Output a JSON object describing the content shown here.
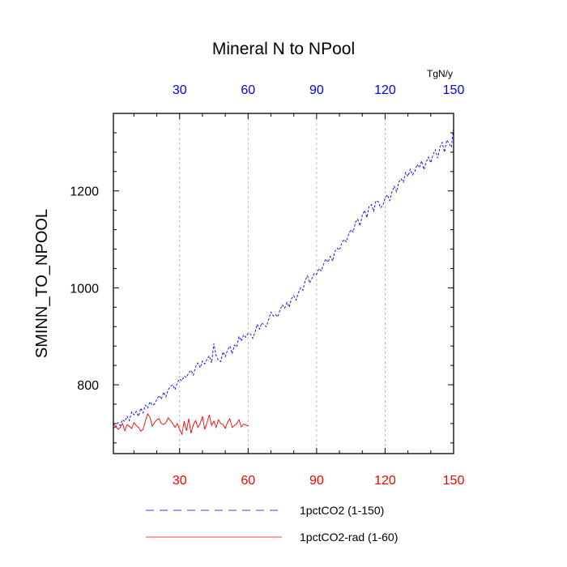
{
  "colors": {
    "series_blue": "#0000ff",
    "series_red": "#ff0000",
    "grid": "#aaaaaa",
    "frame": "#000000"
  },
  "chart_data": {
    "type": "line",
    "title": "Mineral N to NPool",
    "ylabel": "SMINN_TO_NPOOL",
    "units_label": "TgN/y",
    "xlim": [
      1,
      150
    ],
    "ylim": [
      658,
      1360
    ],
    "x_ticks": [
      30,
      60,
      90,
      120,
      150
    ],
    "x_tick_labels": [
      "30",
      "60",
      "90",
      "120",
      "150"
    ],
    "y_ticks": [
      800,
      1000,
      1200
    ],
    "y_tick_labels": [
      "800",
      "1000",
      "1200"
    ],
    "grid": "vertical dashed",
    "legend_placement": "bottom",
    "series": [
      {
        "name": "1pctCO2 (1-150)",
        "color": "#0000ff",
        "dash": "dashed",
        "x_start": 1,
        "values": [
          720,
          712,
          722,
          716,
          728,
          724,
          735,
          726,
          744,
          738,
          745,
          735,
          752,
          742,
          758,
          752,
          765,
          758,
          760,
          770,
          778,
          770,
          785,
          775,
          790,
          797,
          800,
          790,
          805,
          812,
          808,
          818,
          815,
          825,
          830,
          820,
          837,
          845,
          835,
          849,
          843,
          853,
          860,
          845,
          885,
          860,
          850,
          848,
          868,
          858,
          872,
          880,
          864,
          882,
          878,
          900,
          890,
          903,
          898,
          906,
          905,
          896,
          908,
          925,
          915,
          928,
          923,
          920,
          935,
          950,
          942,
          945,
          940,
          955,
          965,
          958,
          970,
          960,
          978,
          984,
          975,
          990,
          1000,
          995,
          1015,
          1025,
          1010,
          1020,
          1030,
          1028,
          1040,
          1035,
          1048,
          1060,
          1053,
          1065,
          1055,
          1075,
          1082,
          1078,
          1092,
          1100,
          1095,
          1110,
          1120,
          1115,
          1135,
          1142,
          1128,
          1150,
          1160,
          1145,
          1168,
          1172,
          1158,
          1180,
          1178,
          1165,
          1170,
          1185,
          1192,
          1180,
          1198,
          1210,
          1198,
          1218,
          1225,
          1218,
          1238,
          1230,
          1245,
          1233,
          1240,
          1255,
          1248,
          1262,
          1244,
          1260,
          1270,
          1258,
          1275,
          1285,
          1268,
          1290,
          1300,
          1280,
          1305,
          1298,
          1290,
          1330
        ]
      },
      {
        "name": "1pctCO2-rad (1-60)",
        "color": "#ff0000",
        "dash": "solid",
        "x_start": 1,
        "values": [
          710,
          715,
          708,
          712,
          720,
          705,
          718,
          714,
          710,
          722,
          716,
          712,
          704,
          708,
          725,
          740,
          733,
          715,
          722,
          728,
          730,
          720,
          718,
          722,
          732,
          726,
          720,
          712,
          720,
          708,
          698,
          725,
          705,
          730,
          700,
          718,
          726,
          712,
          720,
          735,
          708,
          722,
          738,
          716,
          725,
          712,
          728,
          720,
          718,
          710,
          723,
          730,
          712,
          716,
          720,
          728,
          713,
          719,
          717,
          715
        ]
      }
    ]
  }
}
